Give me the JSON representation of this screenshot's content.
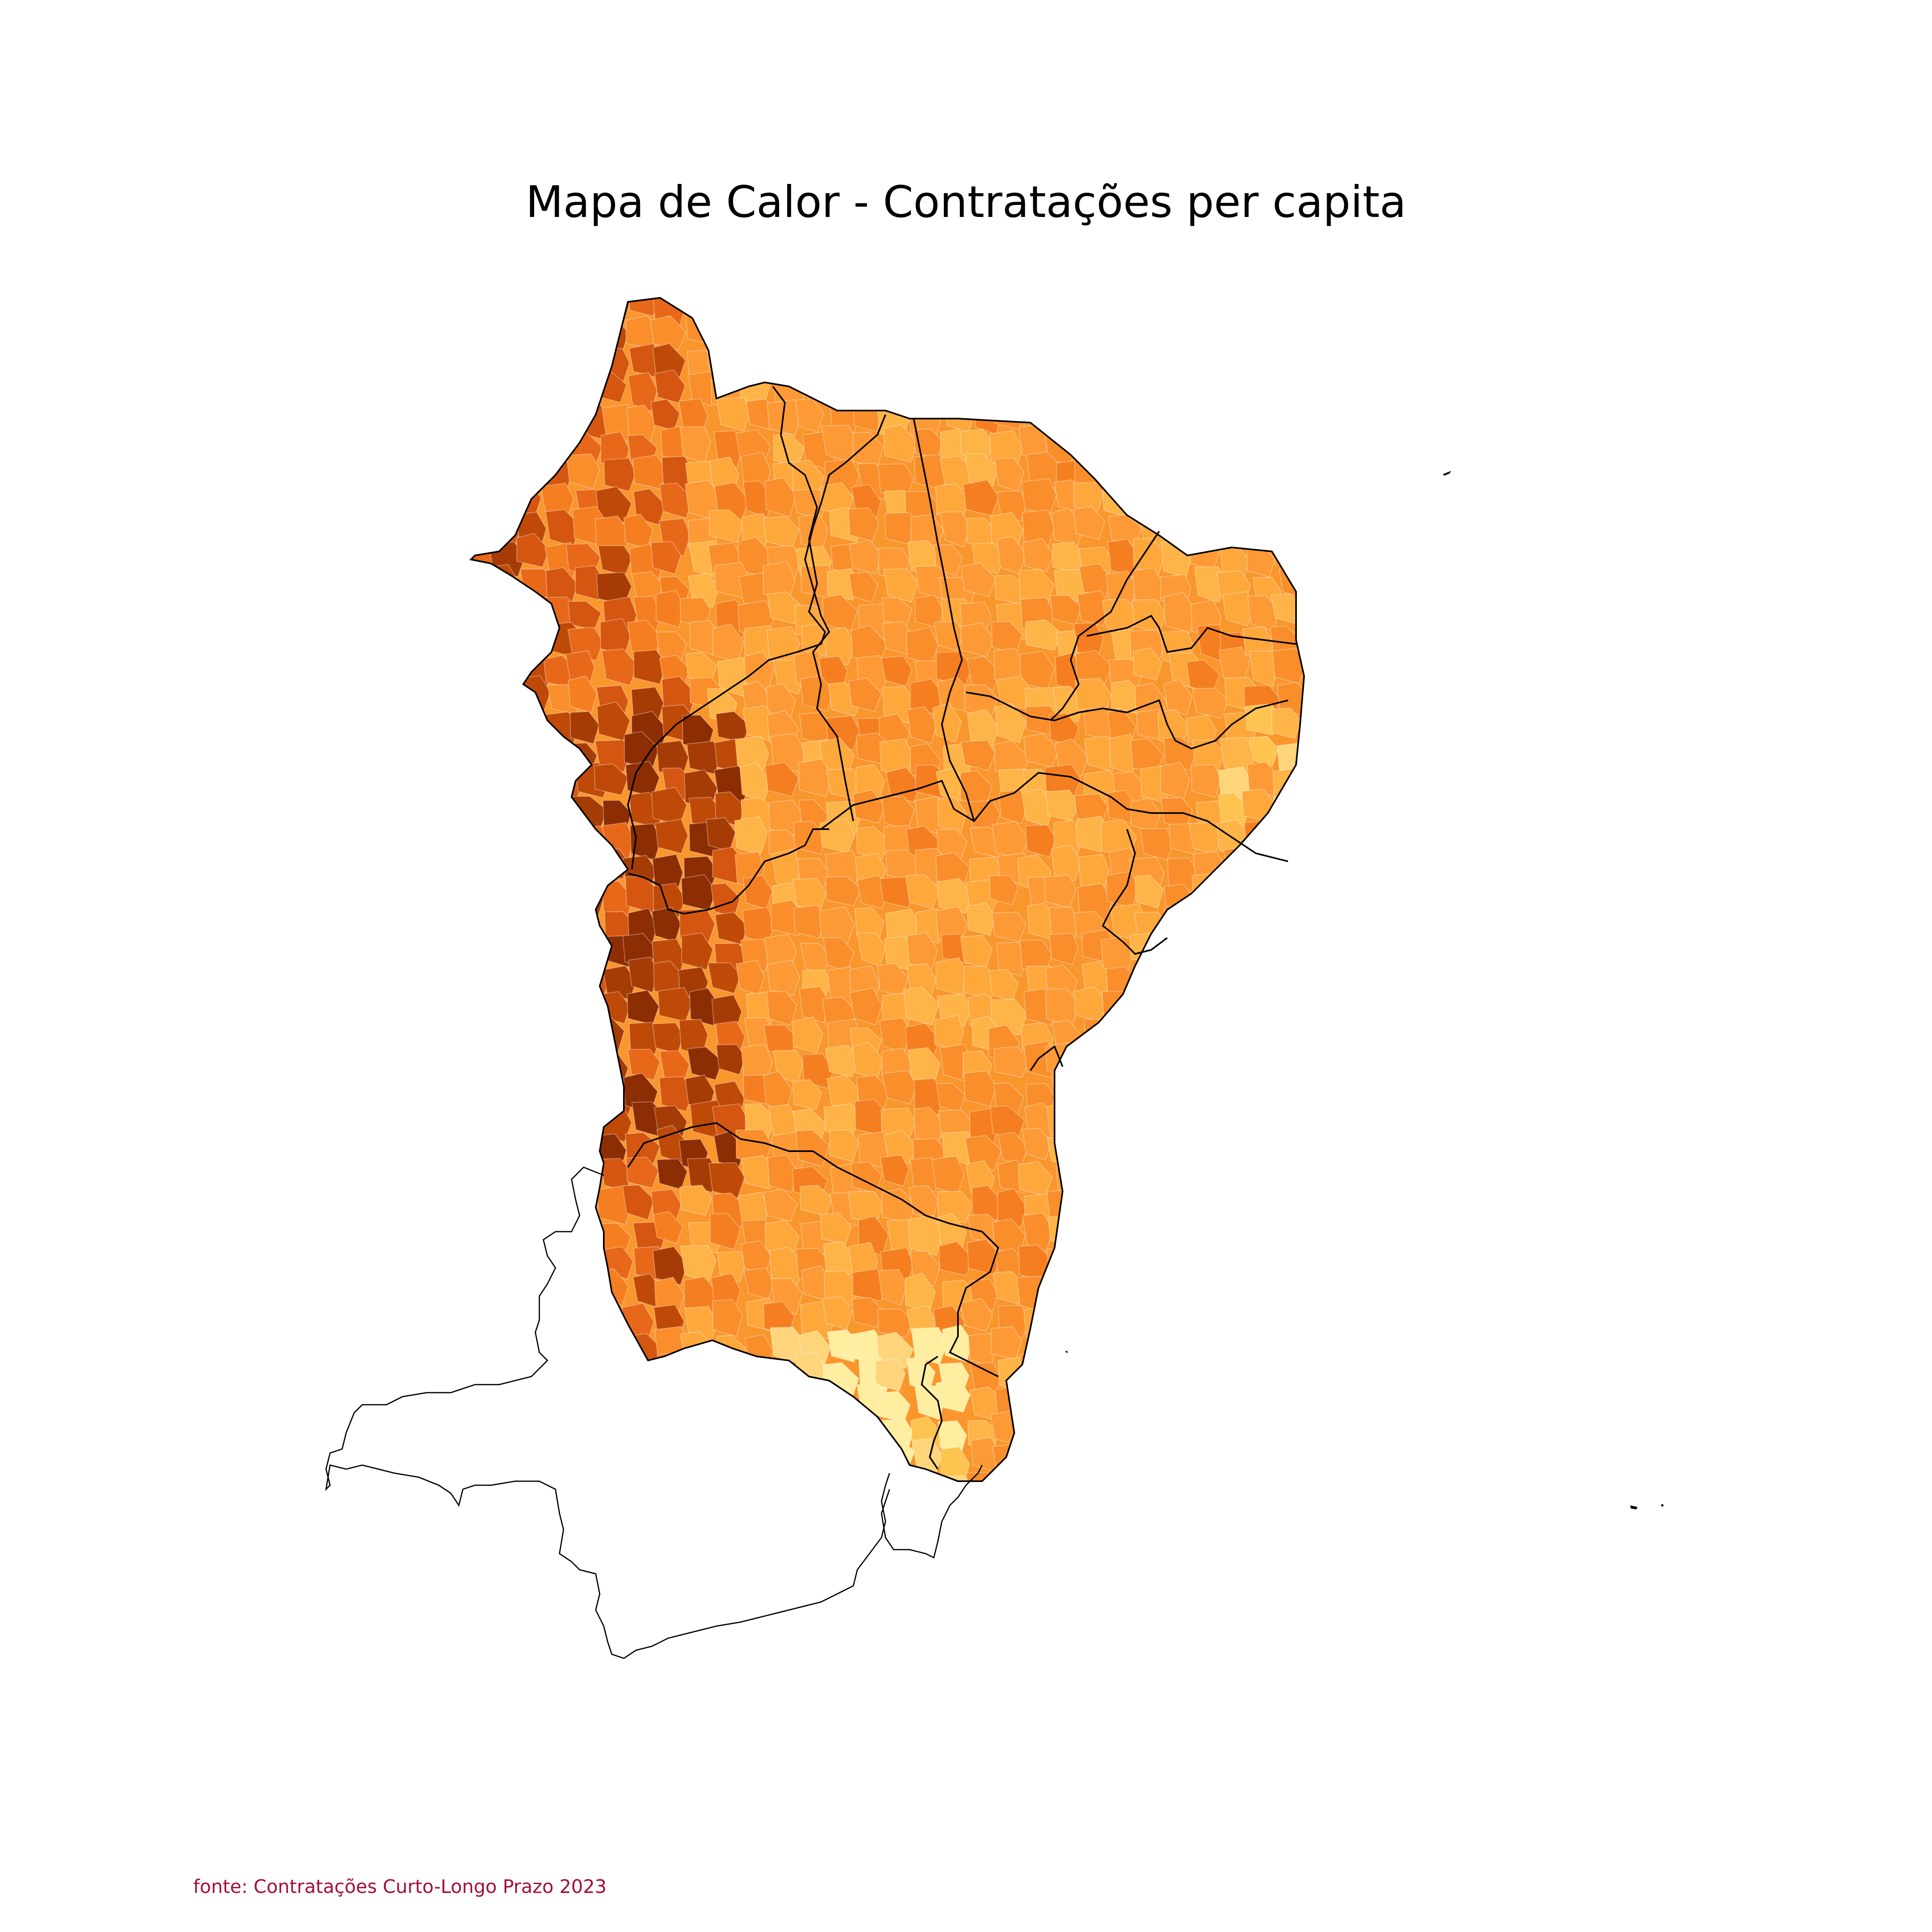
{
  "title": "Mapa de Calor - Contratações per capita",
  "source": "fonte: Contratações Curto-Longo Prazo 2023",
  "colors": {
    "background": "#ffffff",
    "source_text": "#a50f3c",
    "outline": "#000000",
    "palette_low": "#ffeda0",
    "palette_mid": "#fd9a35",
    "palette_high": "#8c2d04"
  },
  "map": {
    "type": "choropleth",
    "colormap": "YlOrBr"
  }
}
